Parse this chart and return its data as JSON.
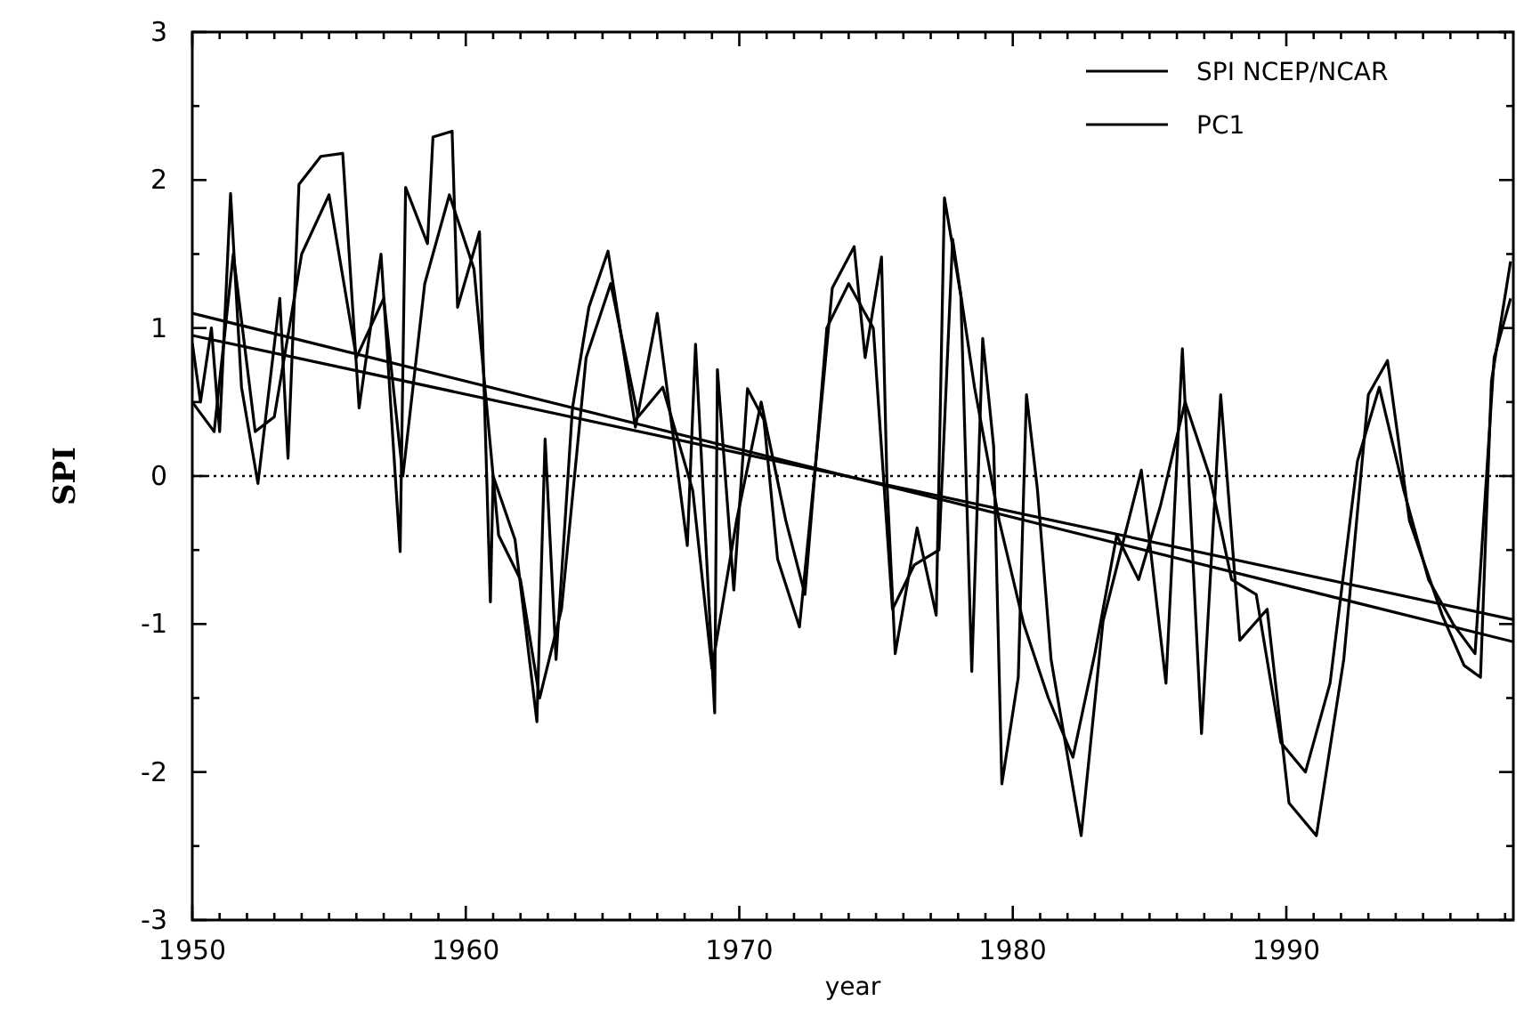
{
  "chart_data": {
    "type": "line",
    "xlabel": "year",
    "ylabel": "SPI",
    "xlim": [
      1950,
      1998.3
    ],
    "ylim": [
      -3,
      3
    ],
    "xticks": [
      1950,
      {
        "value": 1951,
        "label": null
      },
      {
        "value": 1952,
        "label": null
      },
      {
        "value": 1953,
        "label": null
      },
      {
        "value": 1954,
        "label": null
      },
      {
        "value": 1955,
        "label": null
      },
      {
        "value": 1956,
        "label": null
      },
      {
        "value": 1957,
        "label": null
      },
      {
        "value": 1958,
        "label": null
      },
      {
        "value": 1959,
        "label": null
      },
      1960,
      {
        "value": 1961,
        "label": null
      },
      {
        "value": 1962,
        "label": null
      },
      {
        "value": 1963,
        "label": null
      },
      {
        "value": 1964,
        "label": null
      },
      {
        "value": 1965,
        "label": null
      },
      {
        "value": 1966,
        "label": null
      },
      {
        "value": 1967,
        "label": null
      },
      {
        "value": 1968,
        "label": null
      },
      {
        "value": 1969,
        "label": null
      },
      1970,
      {
        "value": 1971,
        "label": null
      },
      {
        "value": 1972,
        "label": null
      },
      {
        "value": 1973,
        "label": null
      },
      {
        "value": 1974,
        "label": null
      },
      {
        "value": 1975,
        "label": null
      },
      {
        "value": 1976,
        "label": null
      },
      {
        "value": 1977,
        "label": null
      },
      {
        "value": 1978,
        "label": null
      },
      {
        "value": 1979,
        "label": null
      },
      1980,
      {
        "value": 1981,
        "label": null
      },
      {
        "value": 1982,
        "label": null
      },
      {
        "value": 1983,
        "label": null
      },
      {
        "value": 1984,
        "label": null
      },
      {
        "value": 1985,
        "label": null
      },
      {
        "value": 1986,
        "label": null
      },
      {
        "value": 1987,
        "label": null
      },
      {
        "value": 1988,
        "label": null
      },
      {
        "value": 1989,
        "label": null
      },
      1990,
      {
        "value": 1991,
        "label": null
      },
      {
        "value": 1992,
        "label": null
      },
      {
        "value": 1993,
        "label": null
      },
      {
        "value": 1994,
        "label": null
      },
      {
        "value": 1995,
        "label": null
      },
      {
        "value": 1996,
        "label": null
      },
      {
        "value": 1997,
        "label": null
      },
      {
        "value": 1998,
        "label": null
      }
    ],
    "yticks": [
      -3,
      {
        "value": -2.5,
        "label": null
      },
      -2,
      {
        "value": -1.5,
        "label": null
      },
      -1,
      {
        "value": -0.5,
        "label": null
      },
      0,
      {
        "value": 0.5,
        "label": null
      },
      1,
      {
        "value": 1.5,
        "label": null
      },
      2,
      {
        "value": 2.5,
        "label": null
      },
      3
    ],
    "grid": false,
    "legend": "top right",
    "marker": "none",
    "line_style": "solid",
    "ref_lines": [
      {
        "axis": "y",
        "value": 0,
        "color": "#000000",
        "line_style": "dotted"
      }
    ],
    "series": [
      {
        "name": "SPI NCEP/NCAR",
        "color": "#000000",
        "x": [
          1950.0,
          1950.3,
          1950.7,
          1951.0,
          1951.4,
          1951.8,
          1952.4,
          1953.2,
          1953.5,
          1953.9,
          1954.7,
          1955.5,
          1956.1,
          1956.9,
          1957.6,
          1957.8,
          1958.6,
          1958.8,
          1959.5,
          1959.7,
          1960.5,
          1960.9,
          1961.0,
          1961.8,
          1962.6,
          1962.9,
          1963.3,
          1963.9,
          1964.5,
          1965.2,
          1966.2,
          1967.0,
          1968.1,
          1968.4,
          1969.1,
          1969.2,
          1969.8,
          1970.3,
          1970.9,
          1971.4,
          1972.2,
          1972.9,
          1973.4,
          1974.2,
          1974.6,
          1975.2,
          1975.4,
          1975.7,
          1976.5,
          1977.2,
          1977.5,
          1978.1,
          1978.5,
          1978.9,
          1979.3,
          1979.6,
          1980.2,
          1980.5,
          1980.9,
          1981.4,
          1982.5,
          1983.3,
          1984.7,
          1985.6,
          1986.2,
          1986.9,
          1987.6,
          1988.3,
          1989.3,
          1990.1,
          1991.1,
          1992.1,
          1993.0,
          1993.7,
          1994.5,
          1995.7,
          1996.5,
          1997.1,
          1997.5,
          1998.2
        ],
        "values": [
          0.9,
          0.5,
          1.0,
          0.3,
          1.91,
          0.6,
          -0.05,
          1.2,
          0.12,
          1.97,
          2.16,
          2.18,
          0.46,
          1.5,
          -0.51,
          1.95,
          1.57,
          2.29,
          2.33,
          1.14,
          1.65,
          -0.85,
          0.0,
          -0.43,
          -1.66,
          0.25,
          -1.24,
          0.46,
          1.14,
          1.52,
          0.33,
          1.1,
          -0.47,
          0.89,
          -1.6,
          0.72,
          -0.77,
          0.59,
          0.38,
          -0.56,
          -1.02,
          0.29,
          1.27,
          1.55,
          0.8,
          1.48,
          -0.05,
          -1.2,
          -0.35,
          -0.94,
          1.88,
          1.22,
          -1.32,
          0.93,
          0.2,
          -2.08,
          -1.36,
          0.55,
          -0.09,
          -1.24,
          -2.43,
          -0.98,
          0.04,
          -1.4,
          0.86,
          -1.74,
          0.55,
          -1.11,
          -0.9,
          -2.21,
          -2.43,
          -1.24,
          0.55,
          0.78,
          -0.3,
          -0.94,
          -1.28,
          -1.36,
          0.64,
          1.45
        ]
      },
      {
        "name": "PC1",
        "color": "#000000",
        "x": [
          1950.0,
          1950.8,
          1951.5,
          1952.3,
          1953.0,
          1954.0,
          1955.0,
          1956.0,
          1957.0,
          1957.7,
          1958.5,
          1959.4,
          1960.3,
          1961.2,
          1962.0,
          1962.7,
          1963.5,
          1964.4,
          1965.3,
          1966.3,
          1967.2,
          1968.3,
          1969.0,
          1969.9,
          1970.8,
          1971.7,
          1972.4,
          1973.2,
          1974.0,
          1974.9,
          1975.6,
          1976.4,
          1977.3,
          1977.8,
          1978.6,
          1979.5,
          1980.4,
          1981.3,
          1982.2,
          1983.0,
          1983.8,
          1984.6,
          1985.4,
          1986.3,
          1987.2,
          1988.0,
          1988.9,
          1989.8,
          1990.7,
          1991.6,
          1992.6,
          1993.4,
          1994.3,
          1995.2,
          1996.1,
          1996.9,
          1997.6,
          1998.2
        ],
        "values": [
          0.5,
          0.3,
          1.5,
          0.3,
          0.4,
          1.5,
          1.9,
          0.8,
          1.2,
          0.0,
          1.3,
          1.9,
          1.4,
          -0.4,
          -0.7,
          -1.5,
          -0.9,
          0.8,
          1.3,
          0.4,
          0.6,
          -0.1,
          -1.3,
          -0.3,
          0.5,
          -0.3,
          -0.8,
          1.0,
          1.3,
          1.0,
          -0.9,
          -0.6,
          -0.5,
          1.6,
          0.6,
          -0.3,
          -1.0,
          -1.5,
          -1.9,
          -1.2,
          -0.4,
          -0.7,
          -0.2,
          0.5,
          0.0,
          -0.7,
          -0.8,
          -1.8,
          -2.0,
          -1.4,
          0.1,
          0.6,
          -0.1,
          -0.7,
          -1.0,
          -1.2,
          0.8,
          1.2
        ]
      },
      {
        "color": "#000000",
        "x": [
          1950,
          1998.3
        ],
        "values": [
          1.1,
          -1.12
        ]
      },
      {
        "color": "#000000",
        "x": [
          1950,
          1998.3
        ],
        "values": [
          0.95,
          -0.97
        ]
      }
    ]
  }
}
